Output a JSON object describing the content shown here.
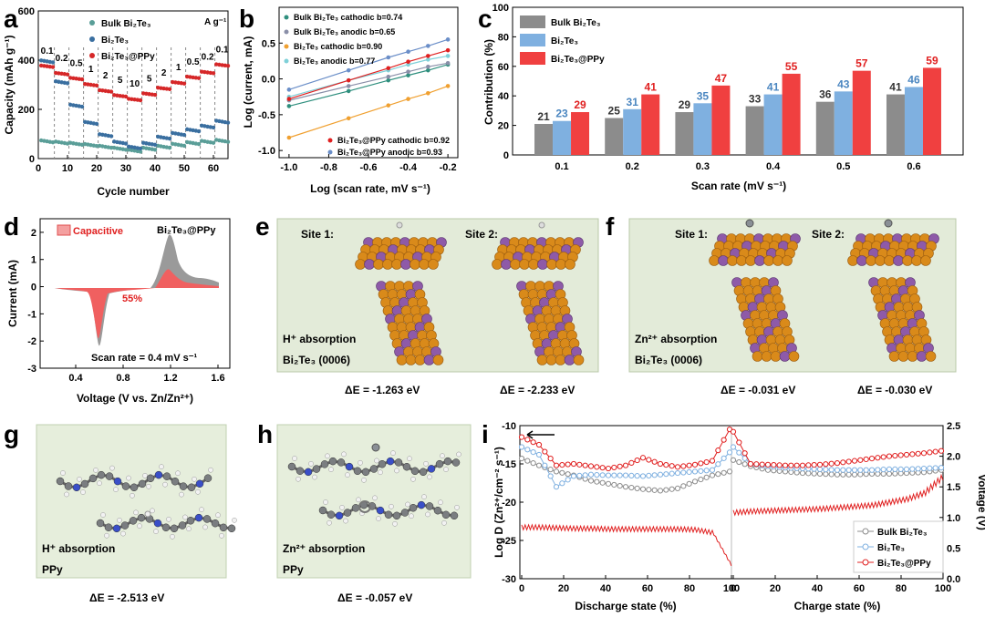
{
  "panels": {
    "a": "a",
    "b": "b",
    "c": "c",
    "d": "d",
    "e": "e",
    "f": "f",
    "g": "g",
    "h": "h",
    "i": "i"
  },
  "chart_data": [
    {
      "id": "a",
      "type": "scatter",
      "title": "",
      "xlabel": "Cycle number",
      "ylabel": "Capacity (mAh g-1)",
      "xlim": [
        0,
        65
      ],
      "ylim": [
        0,
        600
      ],
      "xticks": [
        "0",
        "10",
        "20",
        "30",
        "40",
        "50",
        "60"
      ],
      "yticks": [
        "0",
        "200",
        "400",
        "600"
      ],
      "unit_annotation": "A g-1",
      "rate_labels": [
        "0.1",
        "0.2",
        "0.5",
        "1",
        "2",
        "5",
        "10",
        "5",
        "2",
        "1",
        "0.5",
        "0.2",
        "0.1"
      ],
      "legend": [
        "Bulk Bi2Te3",
        "Bi2Te3",
        "Bi2Te3@PPy"
      ],
      "colors": [
        "#5a9e98",
        "#3a6fa0",
        "#d62728"
      ],
      "series": [
        {
          "name": "Bulk Bi2Te3",
          "values": [
            70,
            65,
            60,
            55,
            48,
            40,
            32,
            40,
            48,
            56,
            63,
            68,
            72
          ]
        },
        {
          "name": "Bi2Te3",
          "values": [
            395,
            310,
            215,
            145,
            95,
            65,
            45,
            60,
            85,
            100,
            115,
            130,
            150
          ]
        },
        {
          "name": "Bi2Te3@PPy",
          "values": [
            375,
            345,
            325,
            300,
            275,
            255,
            240,
            262,
            285,
            308,
            330,
            350,
            380
          ]
        }
      ]
    },
    {
      "id": "b",
      "type": "scatter",
      "xlabel": "Log (scan rate, mV s-1)",
      "ylabel": "Log (current, mA)",
      "xlim": [
        -1.05,
        -0.15
      ],
      "ylim": [
        -1.1,
        1.0
      ],
      "xticks": [
        "-1.0",
        "-0.8",
        "-0.6",
        "-0.4",
        "-0.2"
      ],
      "yticks": [
        "-1.0",
        "-0.5",
        "0.0",
        "0.5"
      ],
      "x": [
        -1.0,
        -0.7,
        -0.5,
        -0.4,
        -0.3,
        -0.2
      ],
      "series": [
        {
          "name": "Bulk Bi2Te3 cathodic b=0.74",
          "color": "#2f8f7e",
          "values": [
            -0.38,
            -0.17,
            -0.02,
            0.05,
            0.12,
            0.2
          ]
        },
        {
          "name": "Bulk Bi2Te3 anodic b=0.65",
          "color": "#8a8fa8",
          "values": [
            -0.3,
            -0.1,
            0.03,
            0.1,
            0.17,
            0.22
          ]
        },
        {
          "name": "Bi2Te3 cathodic b=0.90",
          "color": "#f0a030",
          "values": [
            -0.82,
            -0.55,
            -0.37,
            -0.28,
            -0.2,
            -0.1
          ]
        },
        {
          "name": "Bi2Te3 anodic b=0.77",
          "color": "#7fd0d8",
          "values": [
            -0.25,
            -0.02,
            0.12,
            0.2,
            0.27,
            0.32
          ]
        },
        {
          "name": "Bi2Te3@PPy cathodic b=0.92",
          "color": "#e02020",
          "values": [
            -0.28,
            -0.02,
            0.15,
            0.24,
            0.32,
            0.4
          ]
        },
        {
          "name": "Bi2Te3@PPy anodic b=0.93",
          "color": "#6a8ec8",
          "values": [
            -0.15,
            0.12,
            0.3,
            0.38,
            0.46,
            0.55
          ]
        }
      ]
    },
    {
      "id": "c",
      "type": "bar",
      "xlabel": "Scan rate (mV s-1)",
      "ylabel": "Contribution (%)",
      "ylim": [
        0,
        100
      ],
      "yticks": [
        "0",
        "20",
        "40",
        "60",
        "80",
        "100"
      ],
      "categories": [
        "0.1",
        "0.2",
        "0.3",
        "0.4",
        "0.5",
        "0.6"
      ],
      "series": [
        {
          "name": "Bulk Bi2Te3",
          "color": "#8c8c8c",
          "label_color": "#333333",
          "values": [
            21,
            25,
            29,
            33,
            36,
            41
          ]
        },
        {
          "name": "Bi2Te3",
          "color": "#7fb0e0",
          "label_color": "#4a86c0",
          "values": [
            23,
            31,
            35,
            41,
            43,
            46
          ]
        },
        {
          "name": "Bi2Te3@PPy",
          "color": "#f04040",
          "label_color": "#e02020",
          "values": [
            29,
            41,
            47,
            55,
            57,
            59
          ]
        }
      ]
    },
    {
      "id": "d",
      "type": "area",
      "xlabel": "Voltage (V vs. Zn/Zn2+)",
      "ylabel": "Current (mA)",
      "xlim": [
        0.1,
        1.7
      ],
      "ylim": [
        -3,
        2.5
      ],
      "xticks": [
        "0.4",
        "0.8",
        "1.2",
        "1.6"
      ],
      "yticks": [
        "-3",
        "-2",
        "-1",
        "0",
        "1",
        "2"
      ],
      "legend": [
        "Capacitive"
      ],
      "title": "Bi2Te3@PPy",
      "annotations": [
        "55%",
        "Scan rate = 0.4 mV s-1"
      ]
    },
    {
      "id": "i",
      "type": "line",
      "xlabel_left": "Discharge state (%)",
      "xlabel_right": "Charge state (%)",
      "ylabel_left": "Log D (Zn2+/cm-2 s-1)",
      "ylabel_right": "Voltage (V)",
      "ylim_left": [
        -30,
        -10
      ],
      "ylim_right": [
        0.0,
        2.5
      ],
      "xticks": [
        "0",
        "20",
        "40",
        "60",
        "80",
        "100",
        "0",
        "20",
        "40",
        "60",
        "80",
        "100"
      ],
      "yticks_left": [
        "-30",
        "-25",
        "-20",
        "-15",
        "-10"
      ],
      "yticks_right": [
        "0.0",
        "0.5",
        "1.0",
        "1.5",
        "2.0",
        "2.5"
      ],
      "legend": [
        "Bulk Bi2Te3",
        "Bi2Te3",
        "Bi2Te3@PPy"
      ],
      "series": [
        {
          "name": "Bulk Bi2Te3",
          "color": "#8c8c8c",
          "discharge": [
            -14.3,
            -15.2,
            -16.0,
            -16.5,
            -17.2,
            -17.6,
            -18.0,
            -18.3,
            -18.5,
            -18.2,
            -17.3,
            -16.5,
            -16.0
          ],
          "charge": [
            -14.5,
            -15.3,
            -15.8,
            -16.0,
            -16.2,
            -16.3,
            -16.4,
            -16.4,
            -16.3,
            -16.3,
            -16.2,
            -16.1,
            -15.8
          ]
        },
        {
          "name": "Bi2Te3",
          "color": "#7fb0e0",
          "discharge": [
            -12.8,
            -13.8,
            -18.0,
            -16.6,
            -16.4,
            -16.5,
            -16.5,
            -16.6,
            -16.4,
            -16.2,
            -16.0,
            -15.8,
            -13.5
          ],
          "charge": [
            -12.8,
            -15.0,
            -15.3,
            -15.5,
            -15.6,
            -15.7,
            -15.8,
            -15.8,
            -15.8,
            -15.7,
            -15.7,
            -15.6,
            -15.5
          ]
        },
        {
          "name": "Bi2Te3@PPy",
          "color": "#e02020",
          "discharge": [
            -11.5,
            -12.5,
            -15.2,
            -15.0,
            -15.3,
            -15.6,
            -15.2,
            -14.2,
            -15.0,
            -15.4,
            -15.1,
            -14.6,
            -10.5
          ],
          "charge": [
            -10.8,
            -15.0,
            -15.1,
            -15.2,
            -15.2,
            -15.1,
            -14.9,
            -14.6,
            -14.3,
            -14.0,
            -13.8,
            -13.6,
            -13.3
          ]
        }
      ],
      "voltage": {
        "discharge": [
          0.84,
          0.84,
          0.83,
          0.82,
          0.82,
          0.81,
          0.81,
          0.81,
          0.81,
          0.81,
          0.8,
          0.75,
          0.25
        ],
        "charge": [
          1.08,
          1.1,
          1.11,
          1.12,
          1.13,
          1.14,
          1.16,
          1.18,
          1.2,
          1.25,
          1.3,
          1.4,
          1.65
        ]
      }
    }
  ],
  "panel_a": {
    "unit": "A g⁻¹",
    "legend_bulk": "Bulk Bi₂Te₃",
    "legend_bi": "Bi₂Te₃",
    "legend_ppy": "Bi₂Te₃@PPy",
    "ylabel": "Capacity (mAh g⁻¹)",
    "xlabel": "Cycle number"
  },
  "panel_b": {
    "l1": "Bulk Bi₂Te₃ cathodic b=0.74",
    "l2": "Bulk Bi₂Te₃ anodic b=0.65",
    "l3": "Bi₂Te₃ cathodic b=0.90",
    "l4": "Bi₂Te₃ anodic b=0.77",
    "l5": "Bi₂Te₃@PPy cathodic b=0.92",
    "l6": "Bi₂Te₃@PPy anodic b=0.93",
    "ylabel": "Log (current, mA)",
    "xlabel": "Log (scan rate, mV s⁻¹)"
  },
  "panel_c": {
    "l1": "Bulk Bi₂Te₃",
    "l2": "Bi₂Te₃",
    "l3": "Bi₂Te₃@PPy",
    "ylabel": "Contribution (%)",
    "xlabel": "Scan rate (mV s⁻¹)"
  },
  "panel_d": {
    "legend": "Capacitive",
    "title": "Bi₂Te₃@PPy",
    "pct": "55%",
    "scan": "Scan rate = 0.4 mV s⁻¹",
    "ylabel": "Current (mA)",
    "xlabel": "Voltage (V vs. Zn/Zn²⁺)"
  },
  "panel_e": {
    "site1": "Site 1:",
    "site2": "Site 2:",
    "absorption": "H⁺ absorption",
    "material": "Bi₂Te₃ (0006)",
    "e1": "ΔE = -1.263 eV",
    "e2": "ΔE = -2.233 eV"
  },
  "panel_f": {
    "site1": "Site 1:",
    "site2": "Site 2:",
    "absorption": "Zn²⁺ absorption",
    "material": "Bi₂Te₃ (0006)",
    "e1": "ΔE = -0.031 eV",
    "e2": "ΔE = -0.030 eV"
  },
  "panel_g": {
    "absorption": "H⁺ absorption",
    "material": "PPy",
    "e": "ΔE = -2.513 eV"
  },
  "panel_h": {
    "absorption": "Zn²⁺ absorption",
    "material": "PPy",
    "e": "ΔE = -0.057 eV"
  },
  "panel_i": {
    "l1": "Bulk Bi₂Te₃",
    "l2": "Bi₂Te₃",
    "l3": "Bi₂Te₃@PPy",
    "ylabel_left": "Log D (Zn²⁺/cm⁻² s⁻¹)",
    "ylabel_right": "Voltage (V)",
    "xlabel_left": "Discharge state (%)",
    "xlabel_right": "Charge state (%)"
  }
}
